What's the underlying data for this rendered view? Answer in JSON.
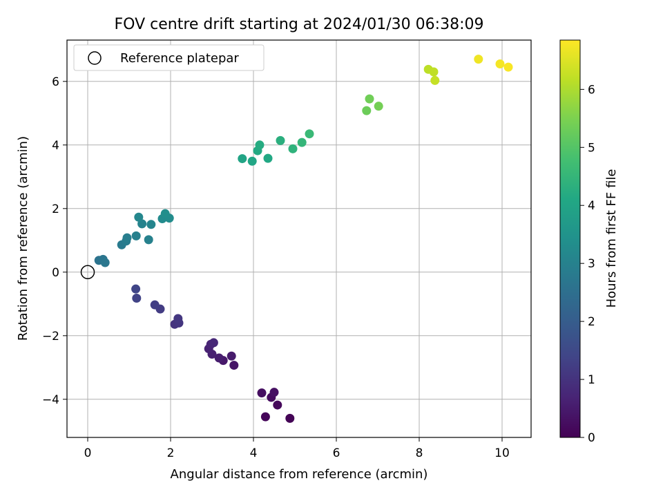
{
  "chart_data": {
    "type": "scatter",
    "title": "FOV centre drift starting at 2024/01/30 06:38:09",
    "xlabel": "Angular distance from reference (arcmin)",
    "ylabel": "Rotation from reference (arcmin)",
    "xlim": [
      -0.5,
      10.7
    ],
    "ylim": [
      -5.2,
      7.3
    ],
    "xticks": [
      0,
      2,
      4,
      6,
      8,
      10
    ],
    "yticks": [
      -4,
      -2,
      0,
      2,
      4,
      6
    ],
    "xtick_labels": [
      "0",
      "2",
      "4",
      "6",
      "8",
      "10"
    ],
    "ytick_labels": [
      "−4",
      "−2",
      "0",
      "2",
      "4",
      "6"
    ],
    "grid": true,
    "legend": {
      "position": "top-left",
      "entries": [
        "Reference platepar"
      ]
    },
    "reference_point": {
      "x": 0,
      "y": 0,
      "marker": "open-circle",
      "color": "#000000"
    },
    "colorbar": {
      "label": "Hours from first FF file",
      "colormap": "viridis",
      "range": [
        0,
        6.85
      ],
      "ticks": [
        0,
        1,
        2,
        3,
        4,
        5,
        6
      ],
      "tick_labels": [
        "0",
        "1",
        "2",
        "3",
        "4",
        "5",
        "6"
      ]
    },
    "points": [
      {
        "x": 4.88,
        "y": -4.6,
        "hours": 0.05
      },
      {
        "x": 4.29,
        "y": -4.55,
        "hours": 0.1
      },
      {
        "x": 4.58,
        "y": -4.18,
        "hours": 0.15
      },
      {
        "x": 4.43,
        "y": -3.94,
        "hours": 0.2
      },
      {
        "x": 4.2,
        "y": -3.8,
        "hours": 0.25
      },
      {
        "x": 4.5,
        "y": -3.78,
        "hours": 0.3
      },
      {
        "x": 3.53,
        "y": -2.93,
        "hours": 0.4
      },
      {
        "x": 3.27,
        "y": -2.78,
        "hours": 0.45
      },
      {
        "x": 3.47,
        "y": -2.64,
        "hours": 0.5
      },
      {
        "x": 3.17,
        "y": -2.7,
        "hours": 0.55
      },
      {
        "x": 3.0,
        "y": -2.58,
        "hours": 0.6
      },
      {
        "x": 2.92,
        "y": -2.41,
        "hours": 0.65
      },
      {
        "x": 2.97,
        "y": -2.27,
        "hours": 0.7
      },
      {
        "x": 3.04,
        "y": -2.22,
        "hours": 0.75
      },
      {
        "x": 2.1,
        "y": -1.64,
        "hours": 1.0
      },
      {
        "x": 2.2,
        "y": -1.6,
        "hours": 1.05
      },
      {
        "x": 2.18,
        "y": -1.46,
        "hours": 1.1
      },
      {
        "x": 1.75,
        "y": -1.16,
        "hours": 1.2
      },
      {
        "x": 1.62,
        "y": -1.03,
        "hours": 1.25
      },
      {
        "x": 1.18,
        "y": -0.82,
        "hours": 1.35
      },
      {
        "x": 1.16,
        "y": -0.53,
        "hours": 1.4
      },
      {
        "x": 0.27,
        "y": 0.37,
        "hours": 2.6
      },
      {
        "x": 0.37,
        "y": 0.4,
        "hours": 2.65
      },
      {
        "x": 0.42,
        "y": 0.3,
        "hours": 2.7
      },
      {
        "x": 0.82,
        "y": 0.86,
        "hours": 2.8
      },
      {
        "x": 0.93,
        "y": 0.98,
        "hours": 2.85
      },
      {
        "x": 0.95,
        "y": 1.08,
        "hours": 2.9
      },
      {
        "x": 1.17,
        "y": 1.14,
        "hours": 2.95
      },
      {
        "x": 1.47,
        "y": 1.02,
        "hours": 3.0
      },
      {
        "x": 1.31,
        "y": 1.52,
        "hours": 3.05
      },
      {
        "x": 1.53,
        "y": 1.5,
        "hours": 3.1
      },
      {
        "x": 1.23,
        "y": 1.73,
        "hours": 3.15
      },
      {
        "x": 1.8,
        "y": 1.68,
        "hours": 3.25
      },
      {
        "x": 1.97,
        "y": 1.7,
        "hours": 3.3
      },
      {
        "x": 1.87,
        "y": 1.84,
        "hours": 3.35
      },
      {
        "x": 3.73,
        "y": 3.57,
        "hours": 4.0
      },
      {
        "x": 3.97,
        "y": 3.49,
        "hours": 4.05
      },
      {
        "x": 4.35,
        "y": 3.58,
        "hours": 4.1
      },
      {
        "x": 4.1,
        "y": 3.82,
        "hours": 4.15
      },
      {
        "x": 4.15,
        "y": 4.0,
        "hours": 4.2
      },
      {
        "x": 4.65,
        "y": 4.14,
        "hours": 4.3
      },
      {
        "x": 4.95,
        "y": 3.88,
        "hours": 4.4
      },
      {
        "x": 5.17,
        "y": 4.08,
        "hours": 4.5
      },
      {
        "x": 5.35,
        "y": 4.35,
        "hours": 4.6
      },
      {
        "x": 6.73,
        "y": 5.08,
        "hours": 5.3
      },
      {
        "x": 6.8,
        "y": 5.45,
        "hours": 5.35
      },
      {
        "x": 7.02,
        "y": 5.22,
        "hours": 5.4
      },
      {
        "x": 8.22,
        "y": 6.38,
        "hours": 6.15
      },
      {
        "x": 8.35,
        "y": 6.3,
        "hours": 6.2
      },
      {
        "x": 8.38,
        "y": 6.03,
        "hours": 6.25
      },
      {
        "x": 9.43,
        "y": 6.7,
        "hours": 6.7
      },
      {
        "x": 9.95,
        "y": 6.55,
        "hours": 6.75
      },
      {
        "x": 10.15,
        "y": 6.45,
        "hours": 6.8
      }
    ]
  }
}
